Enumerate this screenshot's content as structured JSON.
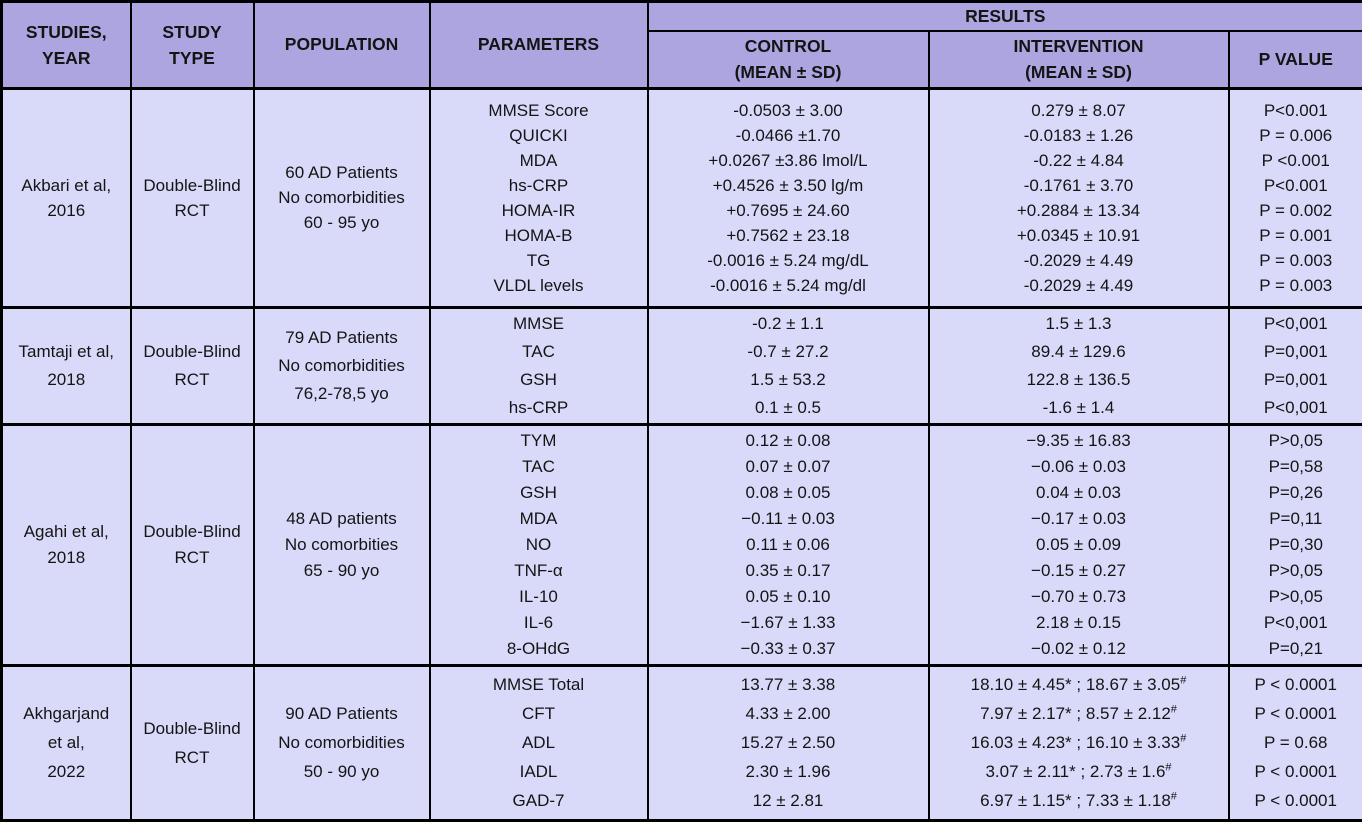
{
  "colors": {
    "header_bg": "#aca5e0",
    "body_bg": "#d9daf9",
    "border": "#000000",
    "text": "#141414"
  },
  "chart_data": {
    "type": "table",
    "columns": [
      "STUDIES, YEAR",
      "STUDY TYPE",
      "POPULATION",
      "PARAMETERS",
      "CONTROL (MEAN ± SD)",
      "INTERVENTION (MEAN ± SD)",
      "P VALUE"
    ],
    "header": {
      "studies_year": [
        "STUDIES,",
        "YEAR"
      ],
      "study_type": [
        "STUDY",
        "TYPE"
      ],
      "population": "POPULATION",
      "parameters": "PARAMETERS",
      "results": "RESULTS",
      "control": [
        "CONTROL",
        "(MEAN ± SD)"
      ],
      "intervention": [
        "INTERVENTION",
        "(MEAN ± SD)"
      ],
      "p_value": "P VALUE"
    },
    "rows": [
      {
        "study": [
          "Akbari et al,",
          "2016"
        ],
        "study_type": [
          "Double-Blind",
          "RCT"
        ],
        "population": [
          "60 AD Patients",
          "No comorbidities",
          "60 - 95 yo"
        ],
        "parameters": [
          "MMSE Score",
          "QUICKI",
          "MDA",
          "hs-CRP",
          "HOMA-IR",
          "HOMA-B",
          "TG",
          "VLDL levels"
        ],
        "control": [
          "-0.0503 ± 3.00",
          "-0.0466 ±1.70",
          "+0.0267 ±3.86 lmol/L",
          "+0.4526 ± 3.50 lg/m",
          "+0.7695 ± 24.60",
          "+0.7562 ± 23.18",
          "-0.0016 ± 5.24 mg/dL",
          "-0.0016 ± 5.24 mg/dl"
        ],
        "intervention": [
          "0.279 ± 8.07",
          "-0.0183 ± 1.26",
          "-0.22 ± 4.84",
          "-0.1761 ± 3.70",
          "+0.2884 ± 13.34",
          "+0.0345 ± 10.91",
          "-0.2029 ± 4.49",
          "-0.2029 ± 4.49"
        ],
        "p_value": [
          "P<0.001",
          "P = 0.006",
          "P <0.001",
          "P<0.001",
          "P = 0.002",
          "P = 0.001",
          "P = 0.003",
          "P = 0.003"
        ]
      },
      {
        "study": [
          "Tamtaji et al,",
          "2018"
        ],
        "study_type": [
          "Double-Blind",
          "RCT"
        ],
        "population": [
          "79 AD Patients",
          "No comorbidities",
          "76,2-78,5 yo"
        ],
        "parameters": [
          "MMSE",
          "TAC",
          "GSH",
          "hs-CRP"
        ],
        "control": [
          "-0.2 ± 1.1",
          "-0.7 ± 27.2",
          "1.5 ± 53.2",
          "0.1 ± 0.5"
        ],
        "intervention": [
          "1.5 ± 1.3",
          "89.4 ± 129.6",
          "122.8 ± 136.5",
          "-1.6 ± 1.4"
        ],
        "p_value": [
          "P<0,001",
          "P=0,001",
          "P=0,001",
          "P<0,001"
        ]
      },
      {
        "study": [
          "Agahi et al,",
          "2018"
        ],
        "study_type": [
          "Double-Blind",
          "RCT"
        ],
        "population": [
          "48 AD patients",
          "No comorbities",
          "65 - 90 yo"
        ],
        "parameters": [
          "TYM",
          "TAC",
          "GSH",
          "MDA",
          "NO",
          "TNF-α",
          "IL-10",
          "IL-6",
          "8-OHdG"
        ],
        "control": [
          "0.12 ± 0.08",
          "0.07 ± 0.07",
          "0.08 ± 0.05",
          "−0.11 ± 0.03",
          "0.11 ± 0.06",
          "0.35 ± 0.17",
          "0.05 ± 0.10",
          "−1.67 ± 1.33",
          "−0.33 ± 0.37"
        ],
        "intervention": [
          "−9.35 ± 16.83",
          "−0.06 ± 0.03",
          "0.04 ± 0.03",
          "−0.17 ± 0.03",
          "0.05 ± 0.09",
          "−0.15 ± 0.27",
          "−0.70 ± 0.73",
          "2.18 ± 0.15",
          "−0.02 ± 0.12"
        ],
        "p_value": [
          "P>0,05",
          "P=0,58",
          "P=0,26",
          "P=0,11",
          "P=0,30",
          "P>0,05",
          "P>0,05",
          "P<0,001",
          "P=0,21"
        ]
      },
      {
        "study": [
          "Akhgarjand",
          "et al,",
          "2022"
        ],
        "study_type": [
          "Double-Blind",
          "RCT"
        ],
        "population": [
          "90 AD Patients",
          "No comorbidities",
          "50 - 90 yo"
        ],
        "parameters": [
          "MMSE Total",
          "CFT",
          "ADL",
          "IADL",
          "GAD-7"
        ],
        "control": [
          "13.77 ± 3.38",
          "4.33 ± 2.00",
          "15.27 ± 2.50",
          "2.30 ± 1.96",
          "12 ± 2.81"
        ],
        "intervention": [
          "18.10 ± 4.45* ; 18.67 ± 3.05{sup#}",
          "7.97 ± 2.17* ; 8.57 ± 2.12{sup#}",
          "16.03 ± 4.23* ; 16.10 ± 3.33{sup#}",
          "3.07 ± 2.11* ; 2.73 ± 1.6{sup#}",
          "6.97 ± 1.15* ; 7.33 ± 1.18{sup#}"
        ],
        "p_value": [
          "P < 0.0001",
          "P < 0.0001",
          "P = 0.68",
          "P < 0.0001",
          "P < 0.0001"
        ]
      }
    ]
  }
}
